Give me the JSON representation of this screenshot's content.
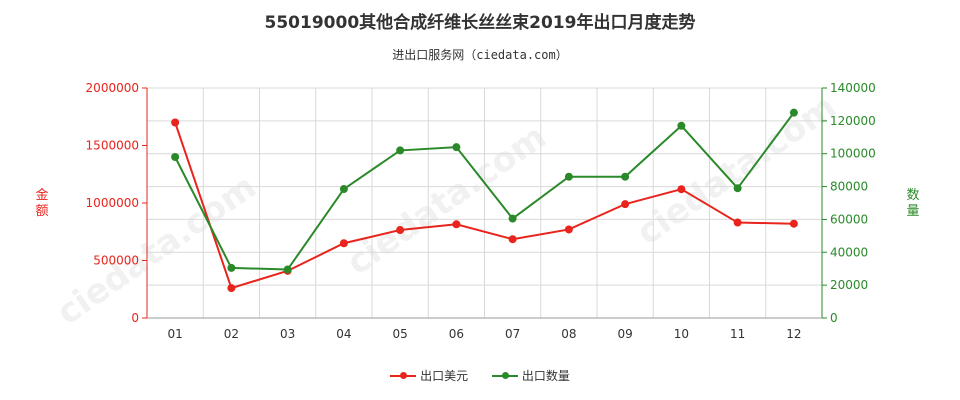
{
  "chart_data": {
    "type": "line",
    "title": "55019000其他合成纤维长丝丝束2019年出口月度走势",
    "subtitle": "进出口服务网（ciedata.com）",
    "categories": [
      "01",
      "02",
      "03",
      "04",
      "05",
      "06",
      "07",
      "08",
      "09",
      "10",
      "11",
      "12"
    ],
    "y_left": {
      "label": "金额",
      "ticks": [
        "2000000",
        "1500000",
        "1000000",
        "500000",
        "0"
      ],
      "ylim": [
        0,
        2000000
      ]
    },
    "y_right": {
      "label": "数量",
      "ticks": [
        "140000",
        "120000",
        "100000",
        "80000",
        "60000",
        "40000",
        "20000",
        "0"
      ],
      "ylim": [
        0,
        140000
      ]
    },
    "series": [
      {
        "name": "出口美元",
        "axis": "left",
        "color": "#e8241c",
        "values": [
          1700000,
          260000,
          410000,
          650000,
          765000,
          815000,
          685000,
          770000,
          990000,
          1120000,
          830000,
          820000
        ]
      },
      {
        "name": "出口数量",
        "axis": "right",
        "color": "#2a8a2a",
        "values": [
          98000,
          30500,
          29500,
          78500,
          102000,
          104000,
          60500,
          86000,
          86000,
          117000,
          79000,
          125000
        ]
      }
    ],
    "grid": true,
    "legend_position": "bottom"
  }
}
